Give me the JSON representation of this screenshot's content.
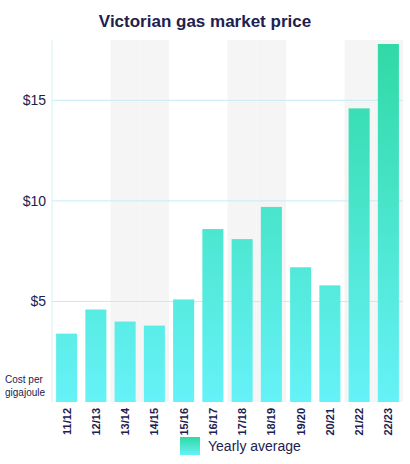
{
  "chart_data": {
    "type": "bar",
    "title": "Victorian gas market price",
    "y_label": "Cost per gigajoule",
    "categories": [
      "11/12",
      "12/13",
      "13/14",
      "14/15",
      "15/16",
      "16/17",
      "17/18",
      "18/19",
      "19/20",
      "20/21",
      "21/22",
      "22/23"
    ],
    "series": [
      {
        "name": "Yearly average",
        "color": "#2fd9a4",
        "values": [
          3.4,
          4.6,
          4.0,
          3.8,
          5.1,
          8.6,
          8.1,
          9.7,
          6.7,
          5.8,
          14.6,
          17.8
        ]
      }
    ],
    "ylim": [
      0,
      18
    ],
    "yticks": [
      {
        "value": 5,
        "label": "$5"
      },
      {
        "value": 10,
        "label": "$10"
      },
      {
        "value": 15,
        "label": "$15"
      }
    ],
    "grid": true,
    "legend": "bottom"
  }
}
